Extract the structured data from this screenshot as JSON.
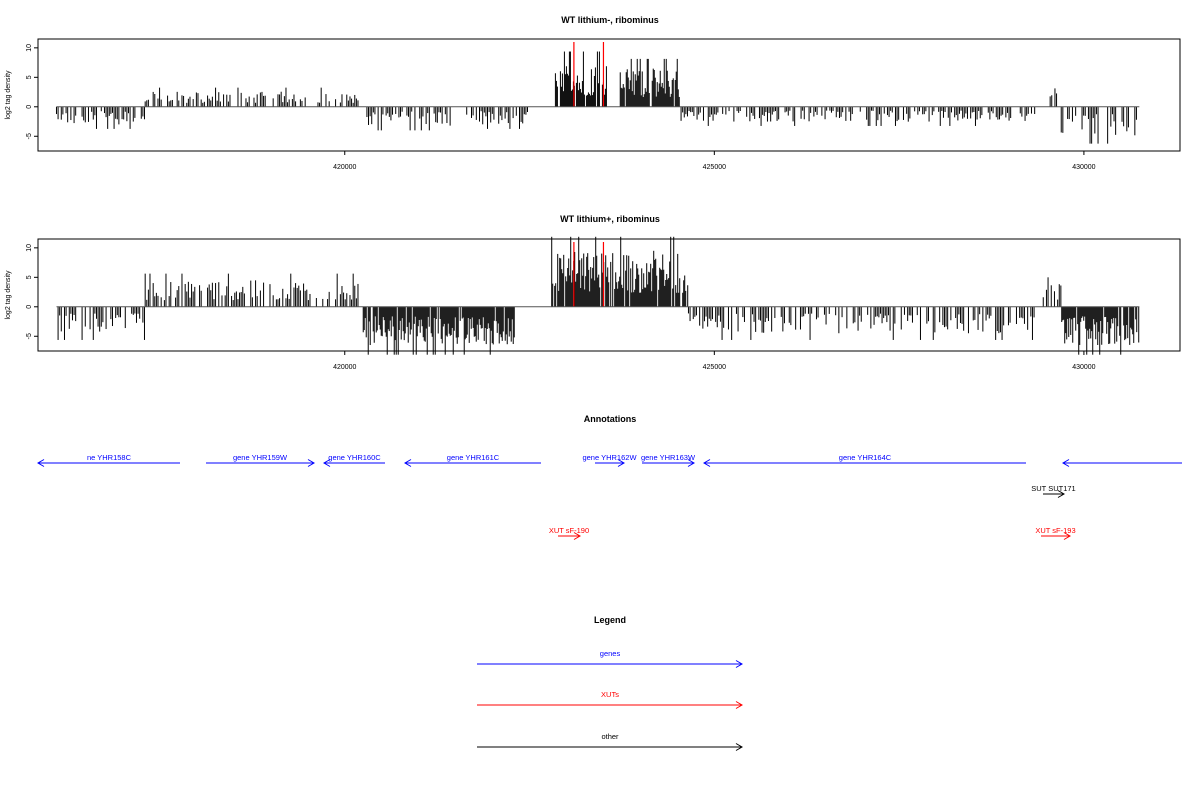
{
  "colors": {
    "genes": "#0000ff",
    "xuts": "#ff0000",
    "other": "#000000",
    "marker": "#ff0000"
  },
  "chart_data": [
    {
      "type": "bar",
      "title": "WT lithium-, ribominus",
      "ylabel": "log2 tag density",
      "ylim": [
        -7.5,
        11.5
      ],
      "xlim": [
        415850,
        431300
      ],
      "yticks": [
        -5,
        0,
        5,
        10
      ],
      "xticks": [
        420000,
        425000,
        430000
      ],
      "markers_x": [
        423100,
        423500
      ],
      "profile": [
        {
          "from": 416100,
          "to": 417300,
          "pol": -1,
          "amp": 3.0
        },
        {
          "from": 417300,
          "to": 420200,
          "pol": 1,
          "amp": 2.6
        },
        {
          "from": 420300,
          "to": 421550,
          "pol": -1,
          "amp": 3.2
        },
        {
          "from": 421650,
          "to": 422500,
          "pol": -1,
          "amp": 3.0
        },
        {
          "from": 422850,
          "to": 423550,
          "pol": 1,
          "amp": 7.5
        },
        {
          "from": 423700,
          "to": 424550,
          "pol": 1,
          "amp": 6.5
        },
        {
          "from": 424550,
          "to": 429350,
          "pol": -1,
          "amp": 2.6
        },
        {
          "from": 429500,
          "to": 429650,
          "pol": 1,
          "amp": 4.5
        },
        {
          "from": 429650,
          "to": 430750,
          "pol": -1,
          "amp": 5.0
        }
      ]
    },
    {
      "type": "bar",
      "title": "WT lithium+, ribominus",
      "ylabel": "log2 tag density",
      "ylim": [
        -7.5,
        11.5
      ],
      "xlim": [
        415850,
        431300
      ],
      "yticks": [
        -5,
        0,
        5,
        10
      ],
      "xticks": [
        420000,
        425000,
        430000
      ],
      "markers_x": [
        423100,
        423500
      ],
      "profile": [
        {
          "from": 416100,
          "to": 417300,
          "pol": -1,
          "amp": 4.5
        },
        {
          "from": 417300,
          "to": 420200,
          "pol": 1,
          "amp": 4.5
        },
        {
          "from": 420250,
          "to": 422300,
          "pol": -1,
          "amp": 6.5
        },
        {
          "from": 422800,
          "to": 424650,
          "pol": 1,
          "amp": 9.5
        },
        {
          "from": 424650,
          "to": 429350,
          "pol": -1,
          "amp": 4.5
        },
        {
          "from": 429450,
          "to": 429700,
          "pol": 1,
          "amp": 4.0
        },
        {
          "from": 429700,
          "to": 430750,
          "pol": -1,
          "amp": 6.5
        }
      ]
    }
  ],
  "annotations": {
    "title": "Annotations",
    "features": [
      {
        "label": "ne YHR158C",
        "type": "gene",
        "strand": "-",
        "x0": 38,
        "x1": 180,
        "row": 0
      },
      {
        "label": "gene YHR159W",
        "type": "gene",
        "strand": "+",
        "x0": 206,
        "x1": 314,
        "row": 0
      },
      {
        "label": "gene YHR160C",
        "type": "gene",
        "strand": "-",
        "x0": 324,
        "x1": 385,
        "row": 0
      },
      {
        "label": "gene YHR161C",
        "type": "gene",
        "strand": "-",
        "x0": 405,
        "x1": 541,
        "row": 0
      },
      {
        "label": "gene YHR162W",
        "type": "gene",
        "strand": "+",
        "x0": 595,
        "x1": 624,
        "row": 0
      },
      {
        "label": "gene YHR163W",
        "type": "gene",
        "strand": "+",
        "x0": 642,
        "x1": 694,
        "row": 0
      },
      {
        "label": "gene YHR164C",
        "type": "gene",
        "strand": "-",
        "x0": 704,
        "x1": 1026,
        "row": 0
      },
      {
        "label": "",
        "type": "gene",
        "strand": "-",
        "x0": 1063,
        "x1": 1182,
        "row": 0
      },
      {
        "label": "SUT SUT171",
        "type": "other",
        "strand": "+",
        "x0": 1043,
        "x1": 1064,
        "row": 1
      },
      {
        "label": "XUT sF-190",
        "type": "xut",
        "strand": "+",
        "x0": 558,
        "x1": 580,
        "row": 2
      },
      {
        "label": "XUT sF-193",
        "type": "xut",
        "strand": "+",
        "x0": 1041,
        "x1": 1070,
        "row": 2
      }
    ]
  },
  "legend": {
    "title": "Legend",
    "items": [
      {
        "label": "genes",
        "type": "gene"
      },
      {
        "label": "XUTs",
        "type": "xut"
      },
      {
        "label": "other",
        "type": "other"
      }
    ]
  }
}
